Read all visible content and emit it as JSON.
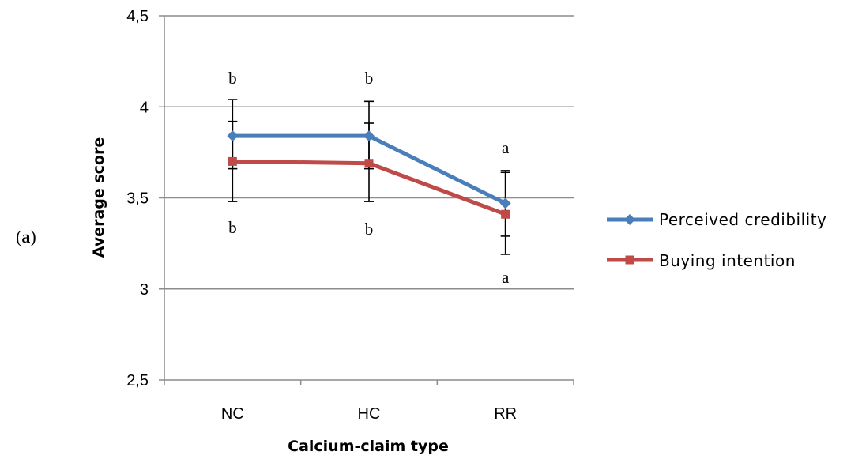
{
  "panel_label": {
    "open": "(",
    "letter": "a",
    "close": ")"
  },
  "chart_data": {
    "type": "line",
    "xlabel": "Calcium-claim type",
    "ylabel": "Average score",
    "categories": [
      "NC",
      "HC",
      "RR"
    ],
    "ylim": [
      2.5,
      4.5
    ],
    "yticks": [
      "2,5",
      "3",
      "3,5",
      "4",
      "4,5"
    ],
    "grid": true,
    "legend_position": "right",
    "series": [
      {
        "name": "Perceived credibility",
        "color": "#4a7ebb",
        "marker": "diamond",
        "values": [
          3.84,
          3.84,
          3.47
        ],
        "err_low": [
          3.66,
          3.66,
          3.29
        ],
        "err_high": [
          4.04,
          4.03,
          3.65
        ]
      },
      {
        "name": "Buying intention",
        "color": "#be4b48",
        "marker": "square",
        "values": [
          3.7,
          3.69,
          3.41
        ],
        "err_low": [
          3.48,
          3.48,
          3.19
        ],
        "err_high": [
          3.92,
          3.91,
          3.64
        ]
      }
    ],
    "annotations": {
      "above": [
        "b",
        "b",
        "a"
      ],
      "below": [
        "b",
        "b",
        "a"
      ]
    }
  }
}
